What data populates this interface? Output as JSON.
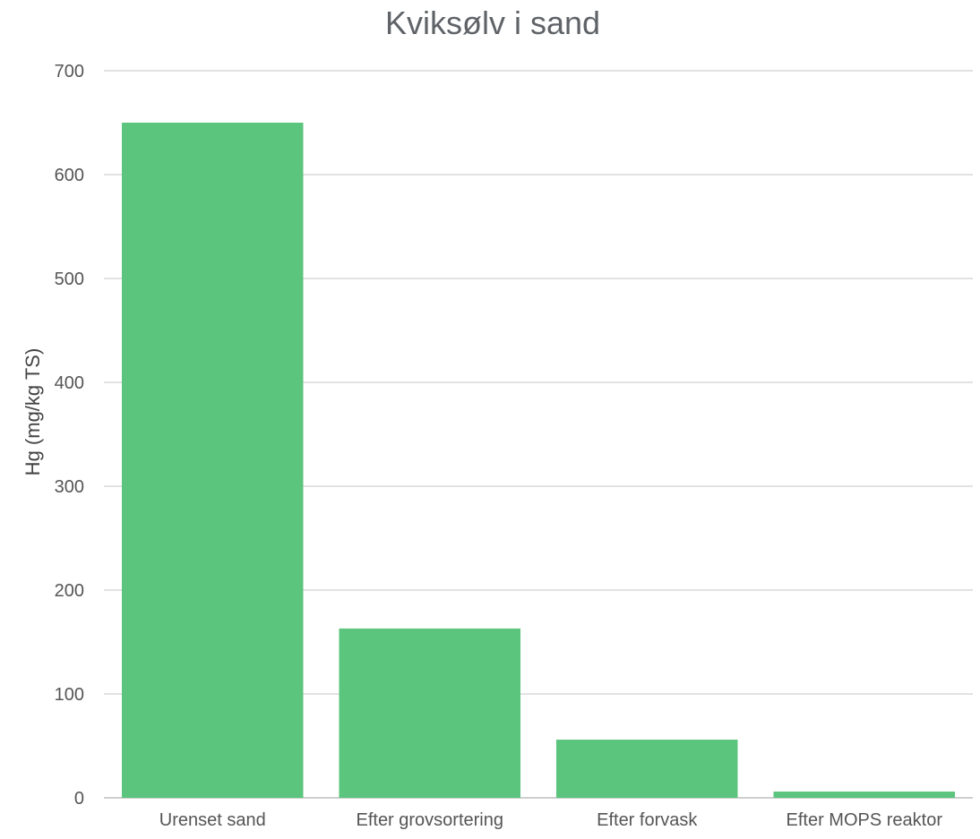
{
  "chart_data": {
    "type": "bar",
    "title": "Kviksølv i sand",
    "xlabel": "",
    "ylabel": "Hg (mg/kg TS)",
    "categories": [
      "Urenset sand",
      "Efter grovsortering",
      "Efter forvask",
      "Efter MOPS reaktor"
    ],
    "values": [
      650,
      163,
      56,
      6
    ],
    "ylim": [
      0,
      700
    ],
    "yticks": [
      0,
      100,
      200,
      300,
      400,
      500,
      600,
      700
    ],
    "grid": true,
    "legend": "none",
    "bar_color": "#5bc47d"
  }
}
